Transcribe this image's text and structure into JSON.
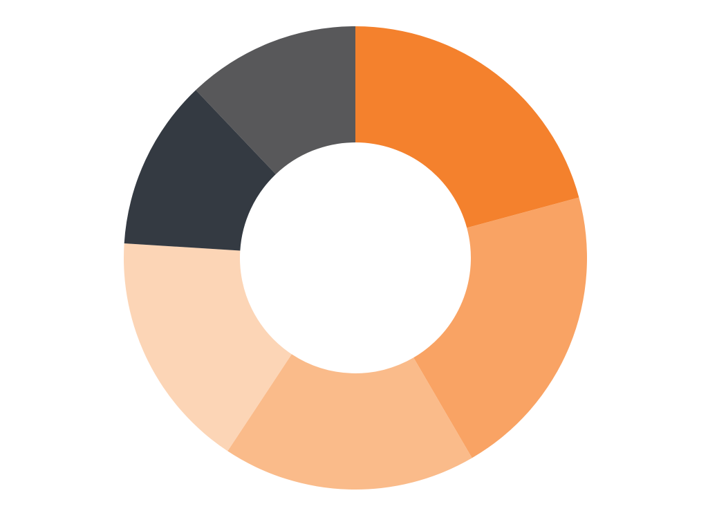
{
  "chart_data": {
    "type": "pie",
    "title": "",
    "categories": [
      "",
      "",
      "",
      "",
      "",
      ""
    ],
    "values": [
      20.8,
      20.8,
      17.7,
      16.7,
      11.9,
      12.1
    ],
    "colors": [
      "#F4812D",
      "#F9A364",
      "#FABB8A",
      "#FCD5B6",
      "#343A42",
      "#58585A"
    ],
    "start_angle_deg": 0,
    "direction": "clockwise",
    "donut": true,
    "legend": "none"
  }
}
